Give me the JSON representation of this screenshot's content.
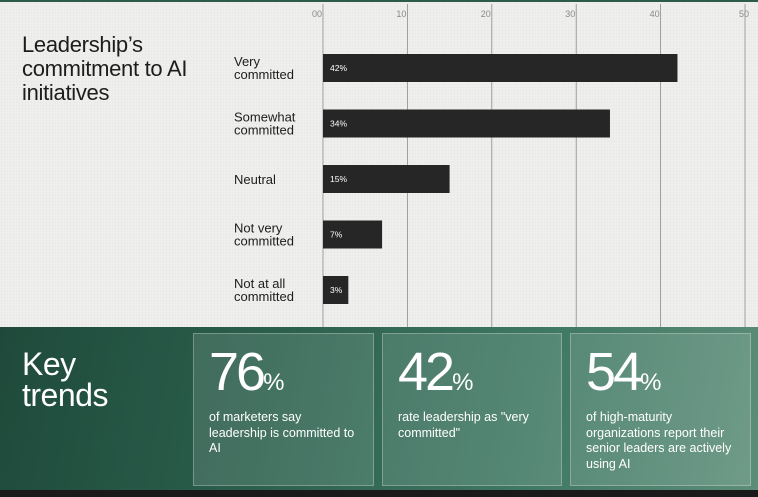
{
  "chart_data": {
    "type": "bar",
    "orientation": "horizontal",
    "title": "Leadership’s commitment to AI initiatives",
    "categories": [
      [
        "Very",
        "committed"
      ],
      [
        "Somewhat",
        "committed"
      ],
      [
        "Neutral"
      ],
      [
        "Not very",
        "committed"
      ],
      [
        "Not at all",
        "committed"
      ]
    ],
    "values": [
      42,
      34,
      15,
      7,
      3
    ],
    "value_labels": [
      "42%",
      "34%",
      "15%",
      "7%",
      "3%"
    ],
    "x_ticks": [
      "00",
      "10",
      "20",
      "30",
      "40",
      "50"
    ],
    "xlim": [
      0,
      50
    ],
    "grid": true,
    "bar_color": "#262626"
  },
  "trends": {
    "title_line1": "Key",
    "title_line2": "trends",
    "cards": [
      {
        "value": "76",
        "unit": "%",
        "desc": "of marketers say leadership is committed to AI"
      },
      {
        "value": "42",
        "unit": "%",
        "desc": "rate leadership as \"very committed\""
      },
      {
        "value": "54",
        "unit": "%",
        "desc": "of high-maturity organizations report their senior leaders are actively using AI"
      }
    ]
  },
  "colors": {
    "chart_background": "#efefed",
    "bar": "#262626",
    "trends_background": "#2b5f4c"
  }
}
